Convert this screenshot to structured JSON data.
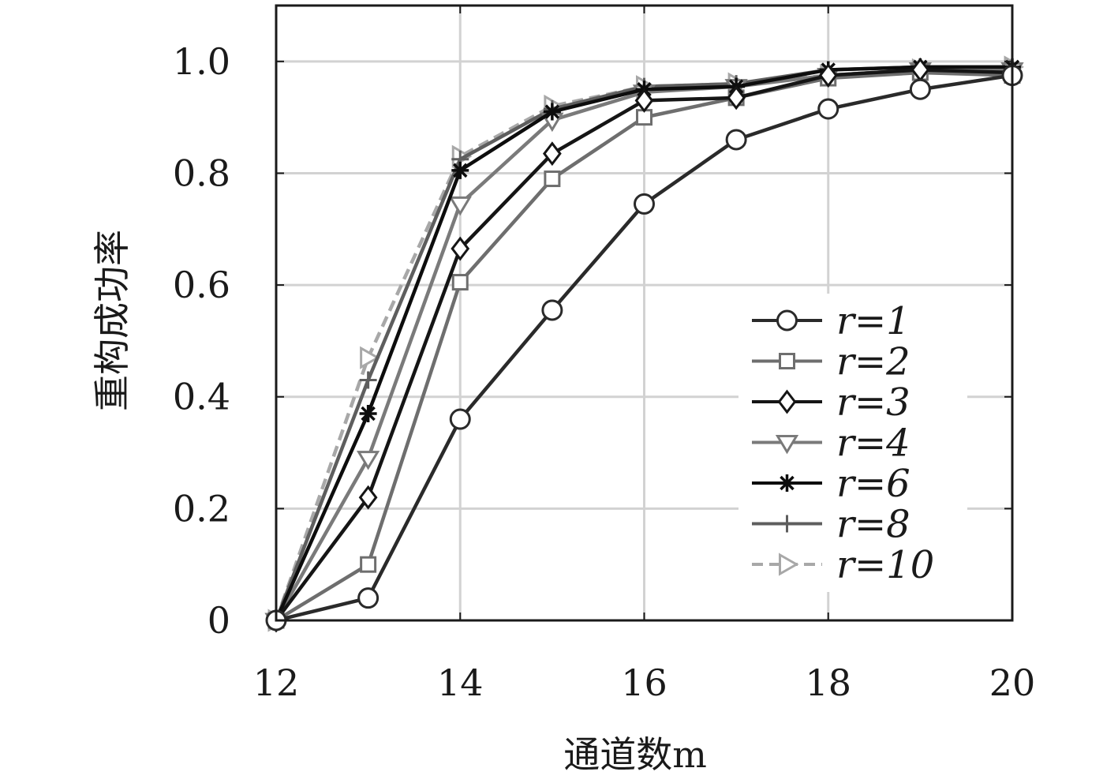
{
  "chart_data": {
    "type": "line",
    "title": "",
    "xlabel": "通道数m",
    "ylabel": "重构成功率",
    "xlim": [
      12,
      20
    ],
    "ylim": [
      0,
      1.1
    ],
    "xticks": [
      "12",
      "14",
      "16",
      "18",
      "20"
    ],
    "yticks": [
      "0",
      "0.2",
      "0.4",
      "0.6",
      "0.8",
      "1.0"
    ],
    "grid": true,
    "legend_position": "lower-right",
    "x": [
      12,
      13,
      14,
      15,
      16,
      17,
      18,
      19,
      20
    ],
    "series": [
      {
        "name": "r=1",
        "marker": "circle",
        "color": "#2a2a2a",
        "dash": false,
        "values": [
          0,
          0.04,
          0.36,
          0.555,
          0.745,
          0.86,
          0.915,
          0.95,
          0.975
        ]
      },
      {
        "name": "r=2",
        "marker": "square",
        "color": "#6e6e6e",
        "dash": false,
        "values": [
          0,
          0.1,
          0.605,
          0.79,
          0.9,
          0.935,
          0.97,
          0.98,
          0.975
        ]
      },
      {
        "name": "r=3",
        "marker": "diamond",
        "color": "#151515",
        "dash": false,
        "values": [
          0,
          0.22,
          0.665,
          0.835,
          0.93,
          0.935,
          0.975,
          0.985,
          0.98
        ]
      },
      {
        "name": "r=4",
        "marker": "triangle-down",
        "color": "#7a7a7a",
        "dash": false,
        "values": [
          0,
          0.29,
          0.745,
          0.895,
          0.945,
          0.955,
          0.975,
          0.985,
          0.985
        ]
      },
      {
        "name": "r=6",
        "marker": "star",
        "color": "#0d0d0d",
        "dash": false,
        "values": [
          0,
          0.37,
          0.805,
          0.91,
          0.95,
          0.955,
          0.985,
          0.99,
          0.99
        ]
      },
      {
        "name": "r=8",
        "marker": "plus",
        "color": "#5e5e5e",
        "dash": false,
        "values": [
          0,
          0.43,
          0.825,
          0.915,
          0.955,
          0.96,
          0.985,
          0.99,
          0.99
        ]
      },
      {
        "name": "r=10",
        "marker": "triangle-right",
        "color": "#a8a8a8",
        "dash": true,
        "values": [
          0,
          0.47,
          0.83,
          0.92,
          0.955,
          0.96,
          0.975,
          0.985,
          0.99
        ]
      }
    ]
  }
}
